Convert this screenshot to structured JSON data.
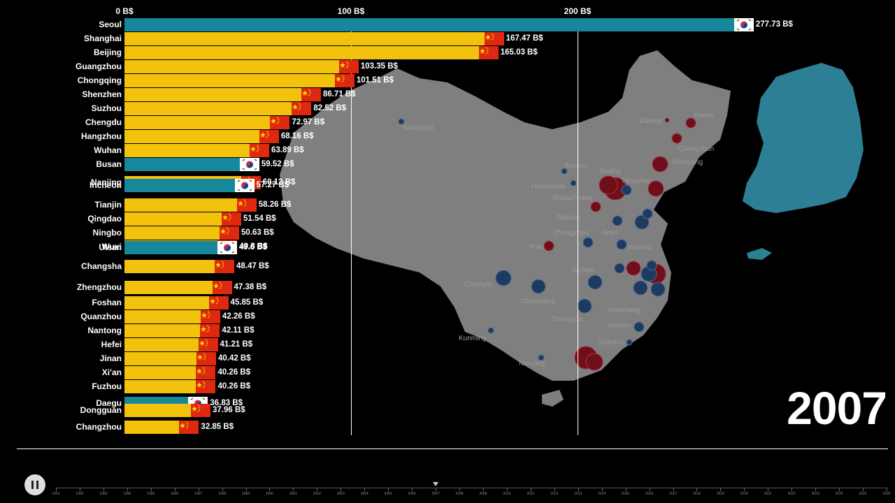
{
  "year": "2007",
  "axis": {
    "ticks": [
      {
        "v": 0,
        "label": "0 B$"
      },
      {
        "v": 100,
        "label": "100 B$"
      },
      {
        "v": 200,
        "label": "200 B$"
      }
    ]
  },
  "colors": {
    "china": "#f2c20c",
    "korea": "#17889c",
    "cn_flag": "#de2910",
    "map_land": "#7f7f7f",
    "bubble_red": "#6e0f1a",
    "bubble_blue": "#1e3a5f"
  },
  "chart_data": {
    "type": "bar",
    "title": "",
    "xlabel": "",
    "ylabel": "",
    "xlim": [
      0,
      277.73
    ],
    "unit": "B$",
    "categories": [
      "Seoul",
      "Shanghai",
      "Beijing",
      "Guangzhou",
      "Chongqing",
      "Shenzhen",
      "Suzhou",
      "Chengdu",
      "Hangzhou",
      "Wuhan",
      "Busan",
      "Nanjing",
      "Incheon",
      "Tianjin",
      "Qingdao",
      "Ningbo",
      "Wuxi",
      "Ulsan",
      "Changsha",
      "Zhengzhou",
      "Foshan",
      "Quanzhou",
      "Nantong",
      "Hefei",
      "Jinan",
      "Xi'an",
      "Fuzhou",
      "Daegu",
      "Dongguan",
      "Changzhou"
    ],
    "series": [
      {
        "values": [
          277.73,
          167.47,
          165.03,
          103.35,
          101.51,
          86.71,
          82.52,
          72.97,
          68.16,
          63.89,
          59.52,
          60.12,
          57.27,
          58.26,
          51.54,
          50.63,
          49.8,
          49.6,
          48.47,
          47.38,
          45.85,
          42.26,
          42.11,
          41.21,
          40.42,
          40.26,
          40.26,
          36.83,
          37.96,
          32.85
        ]
      }
    ],
    "country": [
      "kr",
      "cn",
      "cn",
      "cn",
      "cn",
      "cn",
      "cn",
      "cn",
      "cn",
      "cn",
      "kr",
      "cn",
      "kr",
      "cn",
      "cn",
      "cn",
      "cn",
      "kr",
      "cn",
      "cn",
      "cn",
      "cn",
      "cn",
      "cn",
      "cn",
      "cn",
      "cn",
      "kr",
      "cn",
      "cn"
    ],
    "value_labels": [
      "277.73 B$",
      "167.47 B$",
      "165.03 B$",
      "103.35 B$",
      "101.51 B$",
      "86.71 B$",
      "82.52 B$",
      "72.97 B$",
      "68.16 B$",
      "63.89 B$",
      "59.52 B$",
      "60.12 B$",
      "57.27 B$",
      "58.26 B$",
      "51.54 B$",
      "50.63 B$",
      "49.8 B$",
      "49.6 B$",
      "48.47 B$",
      "47.38 B$",
      "45.85 B$",
      "42.26 B$",
      "42.11 B$",
      "41.21 B$",
      "40.42 B$",
      "40.26 B$",
      "40.26 B$",
      "36.83 B$",
      "37.96 B$",
      "32.85 B$"
    ]
  },
  "map_labels": [
    "Wulumuqi",
    "Daqing",
    "Harbin",
    "Changchun",
    "Shenyang",
    "Baotou",
    "Beijing",
    "Huhehaote",
    "Tangshan",
    "Shijiazhuang",
    "Taiyuan",
    "Jinan",
    "Zhengzhou",
    "Xi'an",
    "Xuzhou",
    "Wuhan",
    "Chengdu",
    "Chongqing",
    "Nanchang",
    "Changsha",
    "Xiamen",
    "Shantou",
    "Kunming",
    "Nanning"
  ],
  "timeline": {
    "years": [
      "1991",
      "1992",
      "1993",
      "1994",
      "1995",
      "1996",
      "1997",
      "1998",
      "1999",
      "2000",
      "2001",
      "2002",
      "2003",
      "2004",
      "2005",
      "2006",
      "2007",
      "2008",
      "2009",
      "2010",
      "2011",
      "2012",
      "2013",
      "2014",
      "2015",
      "2016",
      "2017",
      "2018",
      "2019",
      "2020",
      "2021",
      "2022",
      "2023",
      "2024",
      "2025",
      "2026"
    ],
    "current": "2007"
  }
}
